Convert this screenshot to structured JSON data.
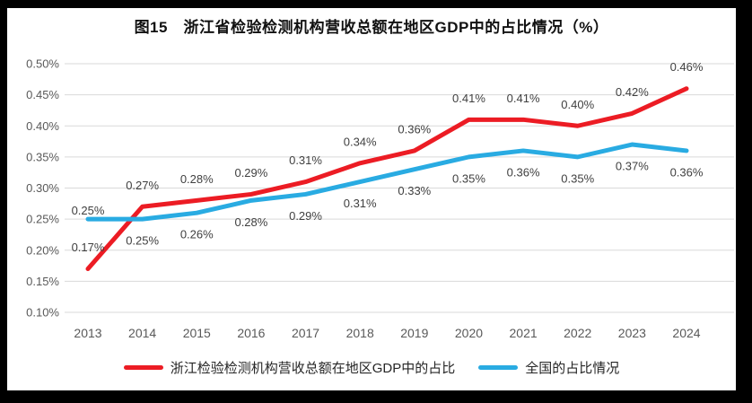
{
  "window": {
    "frame_color": "#000000",
    "canvas_color": "#ffffff"
  },
  "title": "图15　浙江省检验检测机构营收总额在地区GDP中的占比情况（%）",
  "legend": {
    "items": [
      {
        "label": "浙江检验检测机构营收总额在地区GDP中的占比",
        "color": "#ec1c24"
      },
      {
        "label": "全国的占比情况",
        "color": "#29abe2"
      }
    ]
  },
  "chart_data": {
    "type": "line",
    "title": "图15　浙江省检验检测机构营收总额在地区GDP中的占比情况（%）",
    "categories": [
      "2013",
      "2014",
      "2015",
      "2016",
      "2017",
      "2018",
      "2019",
      "2020",
      "2021",
      "2022",
      "2023",
      "2024"
    ],
    "series": [
      {
        "key": "zhejiang",
        "name": "浙江检验检测机构营收总额在地区GDP中的占比",
        "color": "#ec1c24",
        "values": [
          0.17,
          0.27,
          0.28,
          0.29,
          0.31,
          0.34,
          0.36,
          0.41,
          0.41,
          0.4,
          0.42,
          0.46
        ],
        "labels": [
          "0.17%",
          "0.27%",
          "0.28%",
          "0.29%",
          "0.31%",
          "0.34%",
          "0.36%",
          "0.41%",
          "0.41%",
          "0.40%",
          "0.42%",
          "0.46%"
        ],
        "label_side": "above"
      },
      {
        "key": "national",
        "name": "全国的占比情况",
        "color": "#29abe2",
        "values": [
          0.25,
          0.25,
          0.26,
          0.28,
          0.29,
          0.31,
          0.33,
          0.35,
          0.36,
          0.35,
          0.37,
          0.36
        ],
        "labels": [
          "0.25%",
          "0.25%",
          "0.26%",
          "0.28%",
          "0.29%",
          "0.31%",
          "0.33%",
          "0.35%",
          "0.36%",
          "0.35%",
          "0.37%",
          "0.36%"
        ],
        "label_side": "below",
        "label_side_overrides": {
          "0": "above-tight"
        }
      }
    ],
    "ylim": [
      0.1,
      0.5
    ],
    "ytick_step": 0.05,
    "ytick_labels": [
      "0.10%",
      "0.15%",
      "0.20%",
      "0.25%",
      "0.30%",
      "0.35%",
      "0.40%",
      "0.45%",
      "0.50%"
    ],
    "grid": "horizontal-only",
    "legend_position": "bottom",
    "line_width": 5,
    "gridline_color": "#d9d9d9",
    "axis_text_color": "#595959",
    "data_label_color": "#3f3f3f"
  }
}
